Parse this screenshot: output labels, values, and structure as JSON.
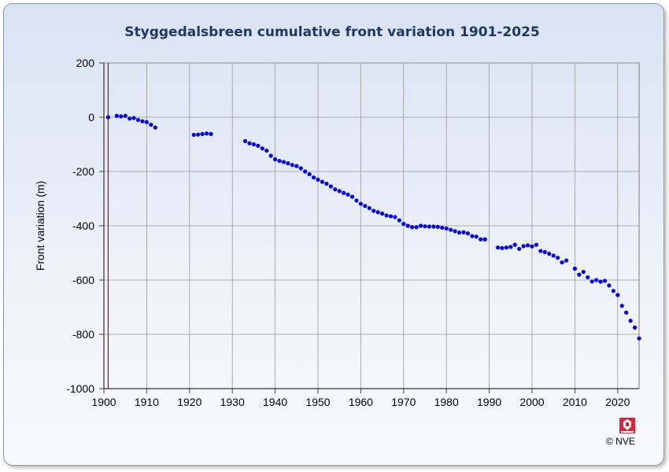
{
  "chart_data": {
    "type": "scatter",
    "title": "Styggedalsbreen  cumulative front variation 1901-2025",
    "ylabel": "Front variation (m)",
    "xlabel": "",
    "xlim": [
      1900,
      2025
    ],
    "ylim": [
      -1000,
      200
    ],
    "x_ticks": [
      "1900",
      "1910",
      "1920",
      "1930",
      "1940",
      "1950",
      "1960",
      "1970",
      "1980",
      "1990",
      "2000",
      "2010",
      "2020"
    ],
    "y_ticks": [
      "200",
      "0",
      "-200",
      "-400",
      "-600",
      "-800",
      "-1000"
    ],
    "reference_line_x": 1901,
    "colors": {
      "points": "#0000ee",
      "reference_line": "#cc0000",
      "grid": "#9a9a9a",
      "title": "#1f3864"
    },
    "series": [
      {
        "x": [
          1901,
          1903,
          1904,
          1905,
          1906,
          1907,
          1908,
          1909,
          1910,
          1911,
          1912,
          1921,
          1922,
          1923,
          1924,
          1925,
          1933,
          1934,
          1935,
          1936,
          1937,
          1938,
          1939,
          1940,
          1941,
          1942,
          1943,
          1944,
          1945,
          1946,
          1947,
          1948,
          1949,
          1950,
          1951,
          1952,
          1953,
          1954,
          1955,
          1956,
          1957,
          1958,
          1959,
          1960,
          1961,
          1962,
          1963,
          1964,
          1965,
          1966,
          1967,
          1968,
          1969,
          1970,
          1971,
          1972,
          1973,
          1974,
          1975,
          1976,
          1977,
          1978,
          1979,
          1980,
          1981,
          1982,
          1983,
          1984,
          1985,
          1986,
          1987,
          1988,
          1989,
          1992,
          1993,
          1994,
          1995,
          1996,
          1997,
          1998,
          1999,
          2000,
          2001,
          2002,
          2003,
          2004,
          2005,
          2006,
          2007,
          2008,
          2010,
          2011,
          2012,
          2013,
          2014,
          2015,
          2016,
          2017,
          2018,
          2019,
          2020,
          2021,
          2022,
          2023,
          2024,
          2025
        ],
        "y": [
          0,
          5,
          3,
          5,
          -5,
          -3,
          -10,
          -15,
          -18,
          -28,
          -38,
          -65,
          -64,
          -62,
          -60,
          -62,
          -88,
          -96,
          -100,
          -105,
          -115,
          -123,
          -142,
          -155,
          -161,
          -165,
          -170,
          -176,
          -180,
          -188,
          -200,
          -210,
          -222,
          -230,
          -238,
          -245,
          -255,
          -266,
          -272,
          -279,
          -285,
          -293,
          -307,
          -319,
          -327,
          -335,
          -345,
          -350,
          -355,
          -362,
          -365,
          -368,
          -380,
          -393,
          -400,
          -405,
          -405,
          -400,
          -402,
          -403,
          -403,
          -404,
          -407,
          -410,
          -415,
          -420,
          -425,
          -424,
          -428,
          -438,
          -440,
          -450,
          -450,
          -480,
          -482,
          -480,
          -478,
          -470,
          -485,
          -475,
          -472,
          -476,
          -470,
          -493,
          -497,
          -503,
          -510,
          -518,
          -535,
          -528,
          -558,
          -580,
          -570,
          -590,
          -605,
          -600,
          -606,
          -603,
          -620,
          -640,
          -655,
          -695,
          -720,
          -750,
          -775,
          -815
        ]
      }
    ]
  },
  "footer": {
    "copyright": "© NVE",
    "logo_icon": "nve-crest-icon"
  }
}
